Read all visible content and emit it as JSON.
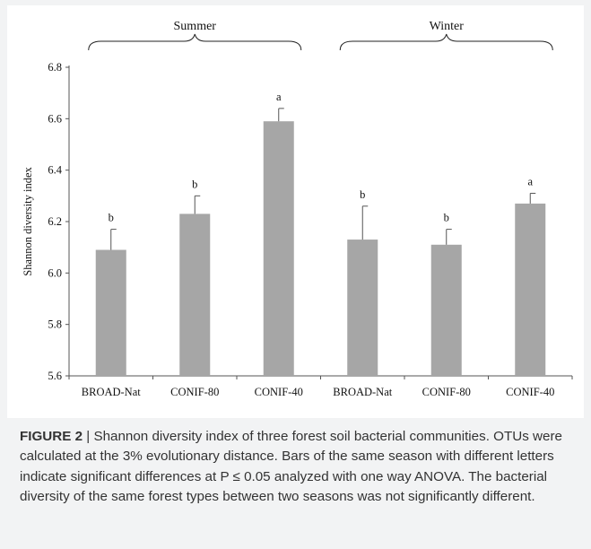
{
  "colors": {
    "bar": "#a6a6a6",
    "axis": "#555555",
    "text": "#111111",
    "caption_bg": "#f2f3f4"
  },
  "chart_data": {
    "type": "bar",
    "title": "",
    "xlabel": "",
    "ylabel": "Shannon diversity index",
    "ylim": [
      5.6,
      6.8
    ],
    "yticks": [
      "5.6",
      "5.8",
      "6.0",
      "6.2",
      "6.4",
      "6.6",
      "6.8"
    ],
    "grid": false,
    "groups": [
      {
        "name": "Summer",
        "start": 0,
        "end": 2
      },
      {
        "name": "Winter",
        "start": 3,
        "end": 5
      }
    ],
    "categories": [
      "BROAD-Nat",
      "CONIF-80",
      "CONIF-40",
      "BROAD-Nat",
      "CONIF-80",
      "CONIF-40"
    ],
    "values": [
      6.09,
      6.23,
      6.59,
      6.13,
      6.11,
      6.27
    ],
    "errors": [
      0.08,
      0.07,
      0.05,
      0.13,
      0.06,
      0.04
    ],
    "labels": [
      "b",
      "b",
      "a",
      "b",
      "b",
      "a"
    ]
  },
  "caption": {
    "label": "FIGURE 2",
    "separator": " | ",
    "text": "Shannon diversity index of three forest soil bacterial communities. OTUs were calculated at the 3% evolutionary distance. Bars of the same season with different letters indicate significant differences at P ≤ 0.05 analyzed with one way ANOVA. The bacterial diversity of the same forest types between two seasons was not significantly different."
  }
}
